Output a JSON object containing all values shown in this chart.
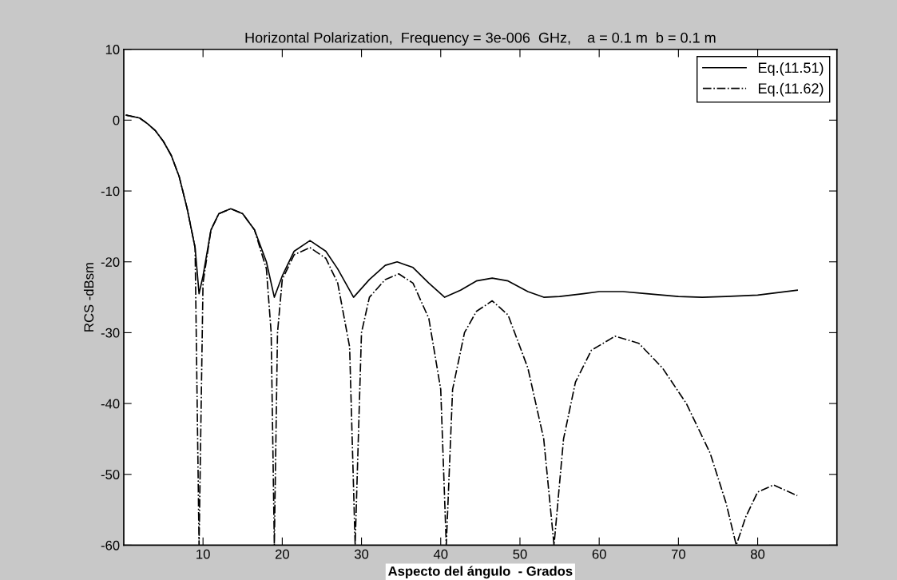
{
  "chart_data": {
    "type": "line",
    "title": "Horizontal Polarization,  Frequency = 3e-006  GHz,    a = 0.1 m  b = 0.1 m",
    "xlabel": "Aspecto del ángulo  - Grados",
    "ylabel": "RCS -dBsm",
    "xlim": [
      0,
      90
    ],
    "ylim": [
      -60,
      10
    ],
    "xticks": [
      10,
      20,
      30,
      40,
      50,
      60,
      70,
      80
    ],
    "yticks": [
      -60,
      -50,
      -40,
      -30,
      -20,
      -10,
      0,
      10
    ],
    "grid": false,
    "legend": "top right",
    "series": [
      {
        "name": "Eq.(11.51)",
        "color": "#000000",
        "line_style": "solid",
        "x": [
          0.3,
          2,
          3,
          4,
          5,
          6,
          7,
          8,
          9,
          9.5,
          10,
          11,
          12,
          13.5,
          15,
          16.5,
          18,
          19,
          20,
          21.5,
          23.5,
          25.5,
          27,
          29,
          31,
          33,
          34.5,
          36.5,
          38.5,
          40.5,
          42.5,
          44.5,
          46.5,
          48.5,
          51,
          53,
          55,
          58,
          60,
          63,
          66,
          70,
          73,
          76,
          80,
          85
        ],
        "values": [
          0.7,
          0.3,
          -0.5,
          -1.5,
          -3,
          -5,
          -8,
          -12.5,
          -18,
          -24.5,
          -22,
          -15.5,
          -13.2,
          -12.5,
          -13.2,
          -15.5,
          -20,
          -25,
          -22,
          -18.5,
          -17,
          -18.5,
          -21,
          -25,
          -22.5,
          -20.5,
          -20,
          -20.8,
          -23,
          -25,
          -24,
          -22.7,
          -22.3,
          -22.7,
          -24.2,
          -25,
          -24.9,
          -24.5,
          -24.2,
          -24.2,
          -24.5,
          -24.9,
          -25,
          -24.9,
          -24.7,
          -24
        ]
      },
      {
        "name": "Eq.(11.62)",
        "color": "#000000",
        "line_style": "dashed",
        "x": [
          0.3,
          2,
          3,
          4,
          5,
          6,
          7,
          8,
          9,
          9.5,
          10,
          11,
          12,
          13.5,
          15,
          16.5,
          18,
          18.6,
          19,
          19.4,
          20,
          21.5,
          23.5,
          25.5,
          27,
          28.5,
          29.2,
          30,
          31,
          33,
          34.7,
          36.5,
          38.5,
          40,
          40.7,
          41.5,
          43,
          44.5,
          46.5,
          48.5,
          51,
          53,
          54.3,
          55.5,
          57,
          59,
          62,
          65,
          68,
          71,
          74,
          76,
          77.3,
          78.5,
          80,
          82,
          85
        ],
        "values": [
          0.7,
          0.3,
          -0.5,
          -1.5,
          -3,
          -5,
          -8,
          -12.5,
          -18,
          -60,
          -23,
          -15.5,
          -13.2,
          -12.5,
          -13.2,
          -15.5,
          -21,
          -30,
          -60,
          -30,
          -22.5,
          -19,
          -18,
          -19.5,
          -23,
          -32,
          -60,
          -30,
          -25,
          -22.5,
          -21.7,
          -23,
          -28,
          -38,
          -60,
          -38,
          -30,
          -27,
          -25.5,
          -27.5,
          -35,
          -45,
          -60,
          -45,
          -37,
          -32.5,
          -30.5,
          -31.5,
          -35,
          -40,
          -47,
          -54,
          -60,
          -56,
          -52.5,
          -51.5,
          -53
        ]
      }
    ]
  }
}
